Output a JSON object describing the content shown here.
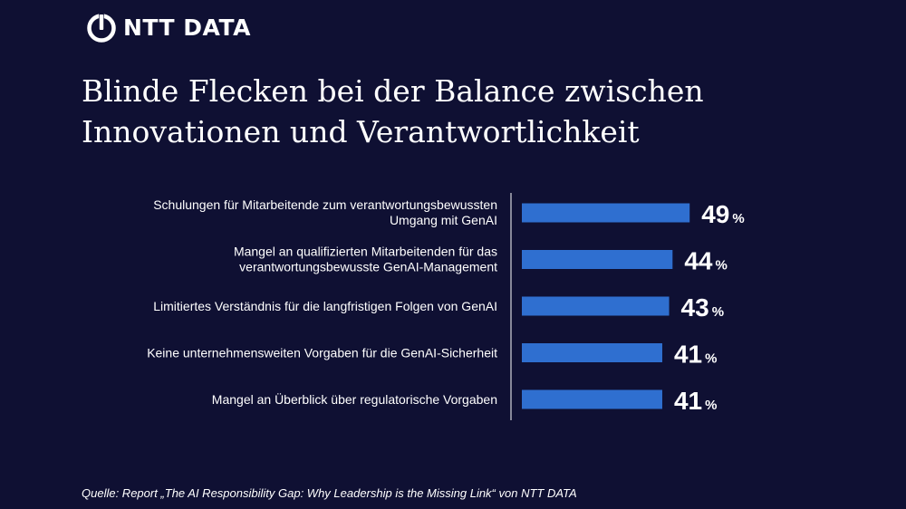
{
  "logo": {
    "text": "NTT DATA"
  },
  "title": {
    "line1": "Blinde Flecken bei der Balance zwischen",
    "line2": "Innovationen und Verantwortlichkeit"
  },
  "colors": {
    "background": "#0f1033",
    "bar": "#2f6fd0",
    "text": "#ffffff"
  },
  "chart_data": {
    "type": "bar",
    "orientation": "horizontal",
    "categories": [
      [
        "Schulungen für Mitarbeitende zum verantwortungsbewussten",
        "Umgang mit GenAI"
      ],
      [
        "Mangel an qualifizierten Mitarbeitenden für das",
        "verantwortungsbewusste GenAI-Management"
      ],
      [
        "Limitiertes Verständnis für die langfristigen Folgen von GenAI"
      ],
      [
        "Keine unternehmensweiten Vorgaben für die GenAI-Sicherheit"
      ],
      [
        "Mangel an Überblick über regulatorische Vorgaben"
      ]
    ],
    "values": [
      49,
      44,
      43,
      41,
      41
    ],
    "unit": "%",
    "xlim": [
      0,
      100
    ],
    "grid": false,
    "legend": "none"
  },
  "source": "Quelle: Report „The AI Responsibility Gap: Why Leadership is the Missing Link“ von NTT DATA"
}
